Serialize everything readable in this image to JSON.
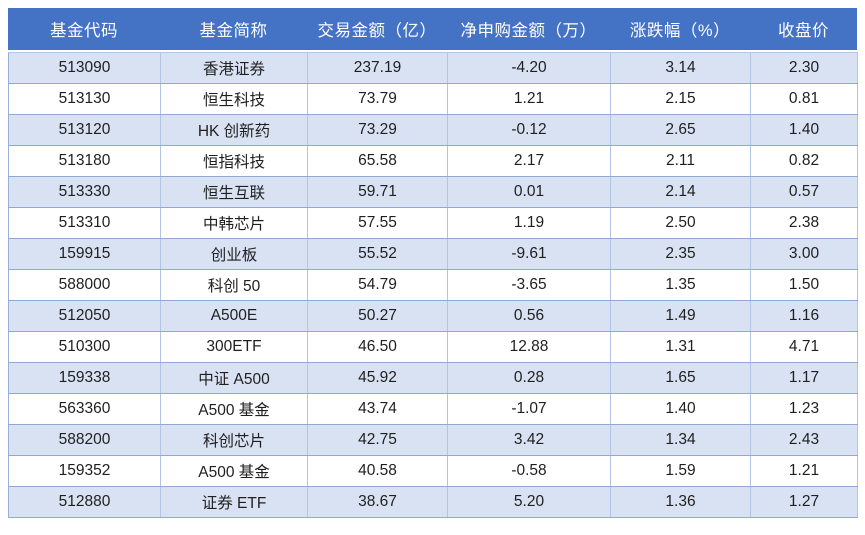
{
  "chart_data": {
    "type": "table",
    "columns": [
      "基金代码",
      "基金简称",
      "交易金额（亿）",
      "净申购金额（万）",
      "涨跌幅（%）",
      "收盘价"
    ],
    "rows": [
      [
        "513090",
        "香港证券",
        "237.19",
        "-4.20",
        "3.14",
        "2.30"
      ],
      [
        "513130",
        "恒生科技",
        "73.79",
        "1.21",
        "2.15",
        "0.81"
      ],
      [
        "513120",
        "HK 创新药",
        "73.29",
        "-0.12",
        "2.65",
        "1.40"
      ],
      [
        "513180",
        "恒指科技",
        "65.58",
        "2.17",
        "2.11",
        "0.82"
      ],
      [
        "513330",
        "恒生互联",
        "59.71",
        "0.01",
        "2.14",
        "0.57"
      ],
      [
        "513310",
        "中韩芯片",
        "57.55",
        "1.19",
        "2.50",
        "2.38"
      ],
      [
        "159915",
        "创业板",
        "55.52",
        "-9.61",
        "2.35",
        "3.00"
      ],
      [
        "588000",
        "科创 50",
        "54.79",
        "-3.65",
        "1.35",
        "1.50"
      ],
      [
        "512050",
        "A500E",
        "50.27",
        "0.56",
        "1.49",
        "1.16"
      ],
      [
        "510300",
        "300ETF",
        "46.50",
        "12.88",
        "1.31",
        "4.71"
      ],
      [
        "159338",
        "中证 A500",
        "45.92",
        "0.28",
        "1.65",
        "1.17"
      ],
      [
        "563360",
        "A500 基金",
        "43.74",
        "-1.07",
        "1.40",
        "1.23"
      ],
      [
        "588200",
        "科创芯片",
        "42.75",
        "3.42",
        "1.34",
        "2.43"
      ],
      [
        "159352",
        "A500 基金",
        "40.58",
        "-0.58",
        "1.59",
        "1.21"
      ],
      [
        "512880",
        "证券 ETF",
        "38.67",
        "5.20",
        "1.36",
        "1.27"
      ]
    ],
    "layout": {
      "grid": true,
      "striped": true,
      "header_position": "top"
    }
  },
  "colors": {
    "header_bg": "#4472C4",
    "header_text": "#FFFFFF",
    "stripe_row_bg": "#D9E2F3",
    "plain_row_bg": "#FFFFFF",
    "grid_line": "#8FA8D6",
    "body_text": "#1F1F1F"
  }
}
